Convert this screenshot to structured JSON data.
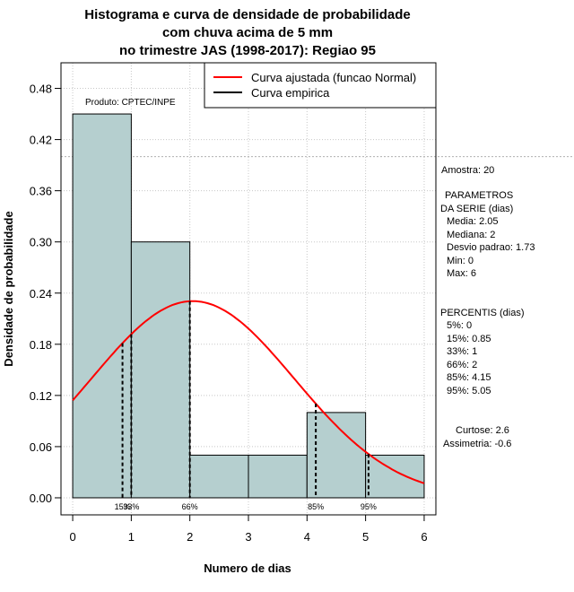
{
  "chart_data": {
    "type": "bar",
    "title_lines": [
      "Histograma e curva de densidade de probabilidade",
      "com chuva acima de 5 mm",
      "no trimestre JAS (1998-2017): Regiao 95"
    ],
    "xlabel": "Numero de dias",
    "ylabel": "Densidade de probabilidade",
    "xlim": [
      -0.2,
      6.2
    ],
    "ylim": [
      -0.02,
      0.51
    ],
    "x_ticks": [
      0,
      1,
      2,
      3,
      4,
      5,
      6
    ],
    "y_ticks": [
      0.0,
      0.06,
      0.12,
      0.18,
      0.24,
      0.3,
      0.36,
      0.42,
      0.48
    ],
    "y_tick_labels": [
      "0.00",
      "0.06",
      "0.12",
      "0.18",
      "0.24",
      "0.30",
      "0.36",
      "0.42",
      "0.48"
    ],
    "reference_line_y": 0.4,
    "bins": [
      {
        "from": 0,
        "to": 1,
        "density": 0.45
      },
      {
        "from": 1,
        "to": 2,
        "density": 0.3
      },
      {
        "from": 2,
        "to": 3,
        "density": 0.05
      },
      {
        "from": 3,
        "to": 4,
        "density": 0.05
      },
      {
        "from": 4,
        "to": 5,
        "density": 0.1
      },
      {
        "from": 5,
        "to": 6,
        "density": 0.05
      }
    ],
    "bar_color": "#b5cfcf",
    "curve_color": "#ff0000",
    "normal_fit": {
      "mean": 2.05,
      "sd": 1.73
    },
    "percentile_markers": [
      {
        "label": "15%",
        "x": 0.85
      },
      {
        "label": "33%",
        "x": 1
      },
      {
        "label": "66%",
        "x": 2
      },
      {
        "label": "85%",
        "x": 4.15
      },
      {
        "label": "95%",
        "x": 5.05
      }
    ],
    "legend": [
      {
        "label": "Curva ajustada (funcao Normal)",
        "color": "#ff0000"
      },
      {
        "label": "Curva empirica",
        "color": "#000000"
      }
    ],
    "source_note": "Produto: CPTEC/INPE"
  },
  "side_panel": {
    "sample": "Amostra: 20",
    "params_title_1": "PARAMETROS",
    "params_title_2": "DA SERIE (dias)",
    "params": [
      "Media: 2.05",
      "Mediana: 2",
      "Desvio padrao: 1.73",
      "Min: 0",
      "Max: 6"
    ],
    "percentis_title": "PERCENTIS (dias)",
    "percentis": [
      "5%: 0",
      "15%: 0.85",
      "33%: 1",
      "66%: 2",
      "85%: 4.15",
      "95%: 5.05"
    ],
    "curtose": "Curtose: 2.6",
    "assimetria": "Assimetria: -0.6"
  }
}
